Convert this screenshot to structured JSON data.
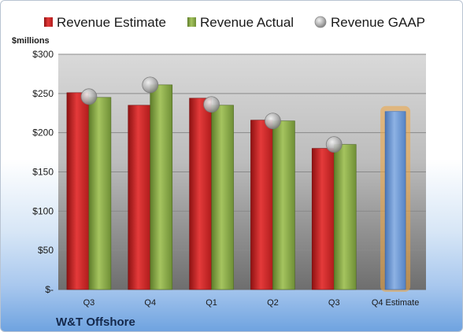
{
  "chart_data": {
    "type": "bar",
    "categories": [
      "Q3",
      "Q4",
      "Q1",
      "Q2",
      "Q3",
      "Q4 Estimate"
    ],
    "series": [
      {
        "name": "Revenue Estimate",
        "values": [
          251,
          235,
          244,
          216,
          180,
          227
        ]
      },
      {
        "name": "Revenue Actual",
        "values": [
          245,
          261,
          235,
          215,
          185,
          null
        ]
      },
      {
        "name": "Revenue GAAP",
        "values": [
          246,
          261,
          236,
          215,
          185,
          null
        ]
      }
    ],
    "ylabel": "$millions",
    "ylim": [
      0,
      300
    ],
    "yticks": [
      0,
      50,
      100,
      150,
      200,
      250,
      300
    ],
    "ytick_labels": [
      "$-",
      "$50",
      "$100",
      "$150",
      "$200",
      "$250",
      "$300"
    ],
    "grid": true,
    "legend_position": "top",
    "highlight_category": "Q4 Estimate",
    "colors": {
      "estimate": "#d42a2a",
      "actual": "#8fb04a",
      "gaap": "#b8b8b8",
      "forecast": "#6e9ad4",
      "forecast_glow": "#f0a640",
      "plot_bg": "#c8c8c8"
    }
  },
  "footer": {
    "company": "W&T Offshore"
  }
}
